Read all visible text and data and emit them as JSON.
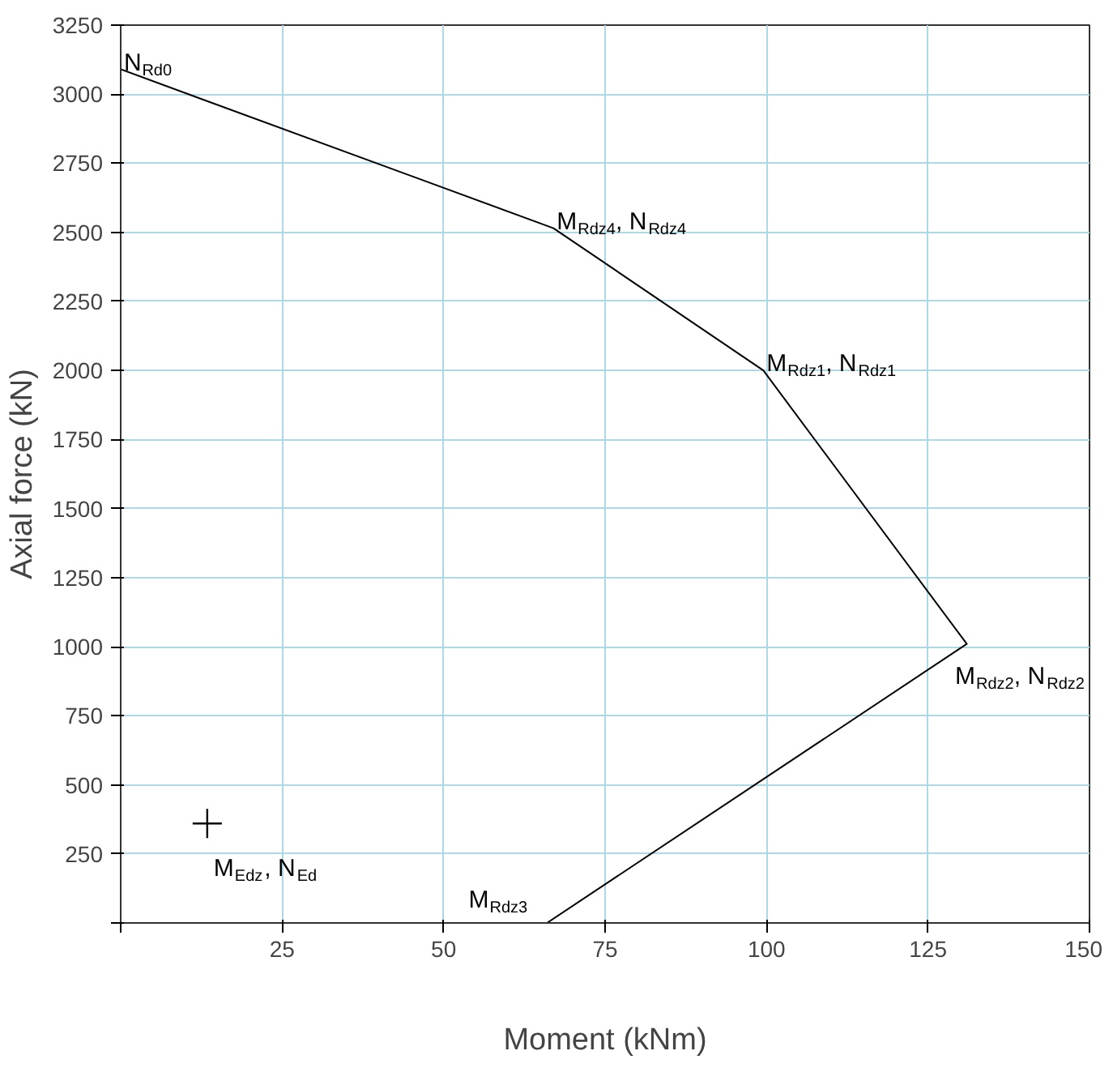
{
  "chart_data": {
    "type": "line",
    "xlabel": "Moment (kNm)",
    "ylabel": "Axial force (kN)",
    "series": [
      {
        "color": "#000000",
        "x": [
          0,
          67,
          99.5,
          131,
          66
        ],
        "values": [
          3090,
          2515,
          2000,
          1010,
          0
        ]
      },
      {
        "type": "scatter",
        "marker": "cross",
        "color": "#000000",
        "x": [
          13.4
        ],
        "values": [
          360
        ]
      }
    ],
    "annotations": [
      {
        "text": "N$_{Rd0}$",
        "x": 0,
        "y": 3090
      },
      {
        "text": "M$_{Rdz4}$, N$_{Rdz4}$",
        "x": 67,
        "y": 2515
      },
      {
        "text": "M$_{Rdz1}$, N$_{Rdz1}$",
        "x": 99.5,
        "y": 2000
      },
      {
        "text": "M$_{Rdz2}$, N$_{Rdz2}$",
        "x": 131,
        "y": 1010
      },
      {
        "text": "M$_{Rdz3}$",
        "x": 66,
        "y": 0
      },
      {
        "text": "M$_{Edz}$, N$_{Ed}$",
        "x": 13.4,
        "y": 360
      }
    ],
    "xlim": [
      0,
      150
    ],
    "ylim": [
      0,
      3250
    ],
    "xticks": [
      {
        "value": 0,
        "label": null
      },
      25,
      50,
      75,
      100,
      125,
      150
    ],
    "yticks": [
      {
        "value": 0,
        "label": null
      },
      250,
      500,
      750,
      1000,
      1250,
      1500,
      1750,
      2000,
      2250,
      2500,
      2750,
      3000,
      3250
    ],
    "grid": true
  }
}
